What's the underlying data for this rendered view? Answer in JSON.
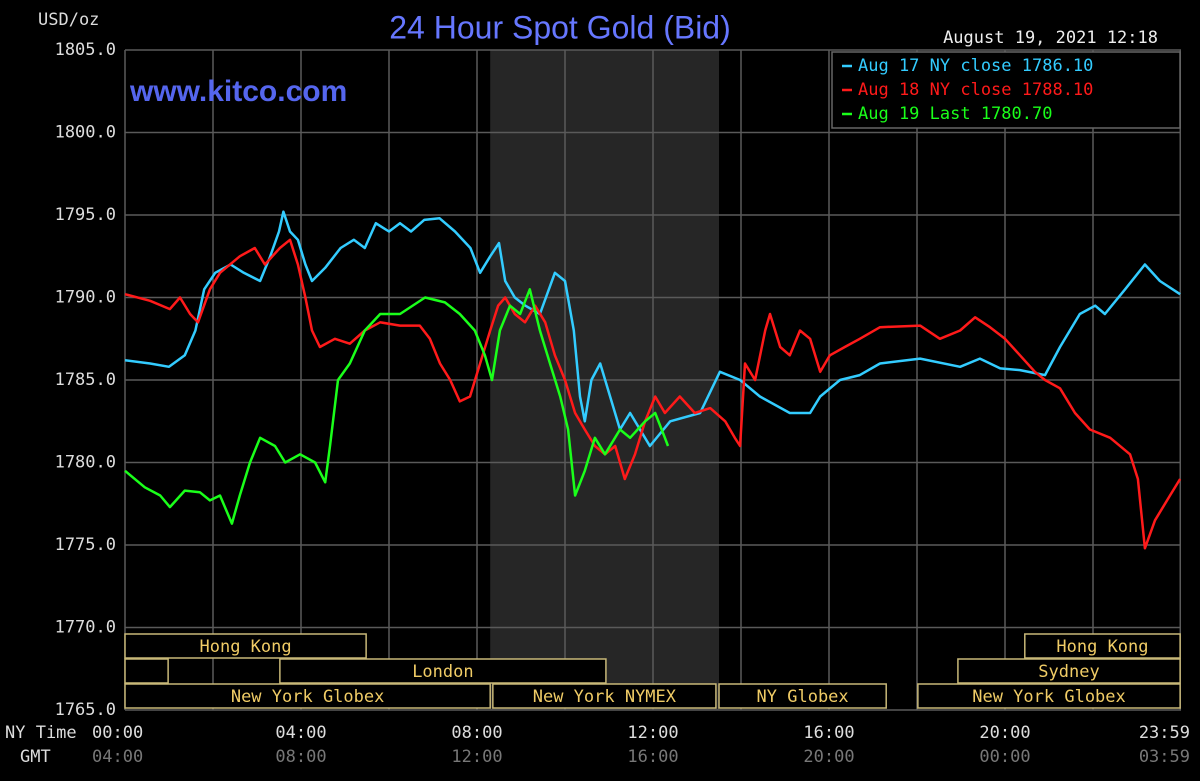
{
  "chart_data": {
    "type": "line",
    "title": "24 Hour Spot Gold (Bid)",
    "y_label": "USD/oz",
    "timestamp": "August 19, 2021 12:18",
    "watermark": "www.kitco.com",
    "x_row_label": "NY Time",
    "x2_row_label": "GMT",
    "xlim": [
      0,
      24
    ],
    "ylim": [
      1765,
      1805
    ],
    "yticks": [
      {
        "value": 1805,
        "label": "1805.0"
      },
      {
        "value": 1800,
        "label": "1800.0"
      },
      {
        "value": 1795,
        "label": "1795.0"
      },
      {
        "value": 1790,
        "label": "1790.0"
      },
      {
        "value": 1785,
        "label": "1785.0"
      },
      {
        "value": 1780,
        "label": "1780.0"
      },
      {
        "value": 1775,
        "label": "1775.0"
      },
      {
        "value": 1770,
        "label": "1770.0"
      },
      {
        "value": 1765,
        "label": "1765.0"
      }
    ],
    "xticks": [
      {
        "value": 0,
        "label": "00:00"
      },
      {
        "value": 4,
        "label": "04:00"
      },
      {
        "value": 8,
        "label": "08:00"
      },
      {
        "value": 12,
        "label": "12:00"
      },
      {
        "value": 16,
        "label": "16:00"
      },
      {
        "value": 20,
        "label": "20:00"
      },
      {
        "value": 23.983,
        "label": "23:59"
      }
    ],
    "x2_labels": [
      "04:00",
      "08:00",
      "12:00",
      "16:00",
      "20:00",
      "00:00",
      "03:59"
    ],
    "xminor": [
      2,
      6,
      10,
      14,
      18,
      22
    ],
    "grid": true,
    "shaded_xrange": [
      8.3,
      13.5
    ],
    "legend": "top-right",
    "series": [
      {
        "name": "Aug 17 NY close 1786.10",
        "color": "#33ccff",
        "x": [
          0,
          0.57,
          1.0,
          1.36,
          1.6,
          1.8,
          2.05,
          2.4,
          2.7,
          3.07,
          3.3,
          3.5,
          3.6,
          3.75,
          3.93,
          4.1,
          4.25,
          4.55,
          4.9,
          5.2,
          5.45,
          5.7,
          6.0,
          6.25,
          6.5,
          6.8,
          7.15,
          7.5,
          7.85,
          8.07,
          8.3,
          8.5,
          8.64,
          8.86,
          9.1,
          9.43,
          9.77,
          10.0,
          10.2,
          10.34,
          10.45,
          10.6,
          10.8,
          11.25,
          11.48,
          11.93,
          12.39,
          13.07,
          13.52,
          13.98,
          14.43,
          15.11,
          15.57,
          15.8,
          16.25,
          16.7,
          17.16,
          18.07,
          18.98,
          19.43,
          19.89,
          20.34,
          20.91,
          21.25,
          21.7,
          22.05,
          22.27,
          22.73,
          23.18,
          23.52,
          23.98
        ],
        "values": [
          1786.2,
          1786.0,
          1785.8,
          1786.5,
          1788.0,
          1790.5,
          1791.5,
          1792.0,
          1791.5,
          1791.0,
          1792.5,
          1794.0,
          1795.2,
          1794.0,
          1793.5,
          1792.0,
          1791.0,
          1791.8,
          1793.0,
          1793.5,
          1793.0,
          1794.5,
          1794.0,
          1794.5,
          1794.0,
          1794.7,
          1794.8,
          1794.0,
          1793.0,
          1791.5,
          1792.5,
          1793.3,
          1791.0,
          1790.0,
          1789.5,
          1789.0,
          1791.5,
          1791.0,
          1788.0,
          1784.0,
          1782.5,
          1785.0,
          1786.0,
          1782.0,
          1783.0,
          1781.0,
          1782.5,
          1783.0,
          1785.5,
          1785.0,
          1784.0,
          1783.0,
          1783.0,
          1784.0,
          1785.0,
          1785.3,
          1786.0,
          1786.3,
          1785.8,
          1786.3,
          1785.7,
          1785.6,
          1785.3,
          1787.0,
          1789.0,
          1789.5,
          1789.0,
          1790.5,
          1792.0,
          1791.0,
          1790.2
        ]
      },
      {
        "name": "Aug 18 NY close 1788.10",
        "color": "#ff1a1a",
        "x": [
          0,
          0.57,
          1.02,
          1.25,
          1.48,
          1.66,
          1.93,
          2.16,
          2.61,
          2.95,
          3.18,
          3.52,
          3.75,
          3.93,
          4.1,
          4.25,
          4.43,
          4.77,
          5.11,
          5.45,
          5.8,
          6.25,
          6.7,
          6.93,
          7.16,
          7.39,
          7.61,
          7.84,
          8.07,
          8.3,
          8.48,
          8.64,
          8.86,
          9.09,
          9.32,
          9.55,
          9.77,
          10.0,
          10.23,
          10.45,
          10.68,
          10.91,
          11.14,
          11.36,
          11.59,
          11.82,
          12.05,
          12.27,
          12.61,
          12.95,
          13.3,
          13.64,
          13.86,
          13.98,
          14.09,
          14.32,
          14.55,
          14.66,
          14.89,
          15.11,
          15.34,
          15.57,
          15.8,
          16.02,
          16.36,
          16.7,
          17.16,
          18.07,
          18.52,
          18.98,
          19.32,
          19.66,
          20.0,
          20.34,
          20.68,
          20.91,
          21.25,
          21.59,
          21.93,
          22.39,
          22.84,
          23.02,
          23.18,
          23.41,
          23.75,
          23.98
        ],
        "values": [
          1790.2,
          1789.8,
          1789.3,
          1790.0,
          1789.0,
          1788.5,
          1790.5,
          1791.5,
          1792.5,
          1793.0,
          1792.0,
          1793.0,
          1793.5,
          1792.0,
          1790.0,
          1788.0,
          1787.0,
          1787.5,
          1787.2,
          1788.0,
          1788.5,
          1788.3,
          1788.3,
          1787.5,
          1786.0,
          1785.0,
          1783.7,
          1784.0,
          1786.0,
          1788.0,
          1789.5,
          1790.0,
          1789.0,
          1788.5,
          1789.5,
          1788.5,
          1786.5,
          1785.0,
          1783.0,
          1782.0,
          1781.0,
          1780.5,
          1781.0,
          1779.0,
          1780.5,
          1782.5,
          1784.0,
          1783.0,
          1784.0,
          1783.0,
          1783.3,
          1782.5,
          1781.5,
          1781.0,
          1786.0,
          1785.0,
          1788.0,
          1789.0,
          1787.0,
          1786.5,
          1788.0,
          1787.5,
          1785.5,
          1786.5,
          1787.0,
          1787.5,
          1788.2,
          1788.3,
          1787.5,
          1788.0,
          1788.8,
          1788.2,
          1787.5,
          1786.5,
          1785.5,
          1785.0,
          1784.5,
          1783.0,
          1782.0,
          1781.5,
          1780.5,
          1779.0,
          1774.8,
          1776.5,
          1778.0,
          1779.0
        ]
      },
      {
        "name": "Aug 19 Last 1780.70",
        "color": "#1aff1a",
        "x": [
          0,
          0.45,
          0.8,
          1.02,
          1.36,
          1.7,
          1.93,
          2.16,
          2.43,
          2.61,
          2.84,
          3.07,
          3.41,
          3.64,
          3.98,
          4.32,
          4.55,
          4.66,
          4.84,
          5.11,
          5.45,
          5.8,
          6.25,
          6.82,
          7.27,
          7.61,
          7.95,
          8.18,
          8.34,
          8.52,
          8.75,
          8.98,
          9.2,
          9.43,
          9.66,
          9.89,
          10.07,
          10.23,
          10.45,
          10.68,
          10.91,
          11.25,
          11.48,
          11.82,
          12.05,
          12.27,
          12.34
        ],
        "values": [
          1779.5,
          1778.5,
          1778.0,
          1777.3,
          1778.3,
          1778.2,
          1777.7,
          1778.0,
          1776.3,
          1778.0,
          1780.0,
          1781.5,
          1781.0,
          1780.0,
          1780.5,
          1780.0,
          1778.8,
          1781.0,
          1785.0,
          1786.0,
          1788.0,
          1789.0,
          1789.0,
          1790.0,
          1789.7,
          1789.0,
          1788.0,
          1786.5,
          1785.0,
          1788.0,
          1789.5,
          1789.0,
          1790.5,
          1788.0,
          1786.0,
          1784.0,
          1782.0,
          1778.0,
          1779.5,
          1781.5,
          1780.5,
          1782.0,
          1781.5,
          1782.5,
          1783.0,
          1781.5,
          1781.0
        ]
      }
    ],
    "sessions": [
      [
        {
          "label": "Hong Kong",
          "start": 0,
          "end": 5.48
        },
        {
          "label": "Hong Kong",
          "start": 20.45,
          "end": 23.98
        }
      ],
      [
        {
          "label": null,
          "start": 0,
          "end": 0.98
        },
        {
          "label": "London",
          "start": 3.52,
          "end": 10.93
        },
        {
          "label": "Sydney",
          "start": 18.93,
          "end": 23.98
        }
      ],
      [
        {
          "label": "New York Globex",
          "start": 0,
          "end": 8.3
        },
        {
          "label": "New York NYMEX",
          "start": 8.36,
          "end": 13.43
        },
        {
          "label": "NY Globex",
          "start": 13.5,
          "end": 17.3
        },
        {
          "label": "New York Globex",
          "start": 18.02,
          "end": 23.98
        }
      ]
    ]
  }
}
